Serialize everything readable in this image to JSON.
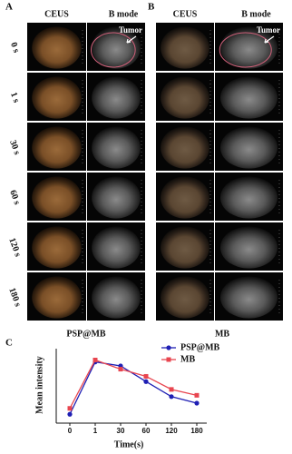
{
  "panel_a": {
    "label": "A",
    "headers": [
      "CEUS",
      "B mode"
    ],
    "annotation": "Tumor",
    "caption": "PSP@MB"
  },
  "panel_b": {
    "label": "B",
    "headers": [
      "CEUS",
      "B mode"
    ],
    "annotation": "Tumor",
    "caption": "MB"
  },
  "time_labels": [
    "0 s",
    "1 s",
    "30 s",
    "60 s",
    "120 s",
    "180 s"
  ],
  "panel_c_label": "C",
  "chart_data": {
    "type": "line",
    "x_label": "Time(s)",
    "y_label": "Mean intensity",
    "categories": [
      "0",
      "1",
      "30",
      "60",
      "120",
      "180"
    ],
    "series": [
      {
        "name": "PSP@MB",
        "color": "#1f1fb4",
        "marker": "circle",
        "values": [
          48,
          128,
          122,
          98,
          75,
          65
        ]
      },
      {
        "name": "MB",
        "color": "#e8454f",
        "marker": "square",
        "values": [
          57,
          131,
          117,
          106,
          86,
          77
        ]
      }
    ],
    "ylim": [
      40,
      140
    ],
    "legend": "upper right",
    "grid": false
  }
}
